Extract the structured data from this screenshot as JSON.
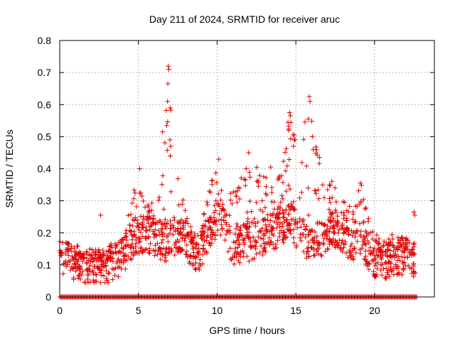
{
  "chart_data": {
    "type": "scatter",
    "title": "Day 211 of 2024, SRMTID for receiver aruc",
    "xlabel": "GPS time / hours",
    "ylabel": "SRMTID / TECUs",
    "xlim": [
      0,
      23.8
    ],
    "ylim": [
      0,
      0.8
    ],
    "x_ticks": [
      0,
      5,
      10,
      15,
      20
    ],
    "x_tick_labels": [
      "0",
      "5",
      "10",
      "15",
      "20"
    ],
    "y_ticks": [
      0,
      0.1,
      0.2,
      0.3,
      0.4,
      0.5,
      0.6,
      0.7,
      0.8
    ],
    "y_tick_labels": [
      "0",
      "0.1",
      "0.2",
      "0.3",
      "0.4",
      "0.5",
      "0.6",
      "0.7",
      "0.8"
    ],
    "grid": true,
    "marker": "+",
    "color": "#e00000",
    "series": [
      {
        "name": "SRMTID",
        "profile_hours": [
          0,
          0.3,
          1,
          2,
          3,
          4,
          4.8,
          5.5,
          6.2,
          6.8,
          7.3,
          8,
          8.7,
          9.5,
          10,
          10.5,
          11,
          12,
          13,
          14,
          14.7,
          15.2,
          15.9,
          16.5,
          17.3,
          18,
          18.5,
          19.2,
          19.8,
          20.5,
          21,
          21.5,
          22,
          22.6
        ],
        "profile_typical": [
          0.12,
          0.13,
          0.11,
          0.1,
          0.1,
          0.13,
          0.19,
          0.2,
          0.18,
          0.17,
          0.19,
          0.18,
          0.13,
          0.2,
          0.25,
          0.22,
          0.16,
          0.17,
          0.19,
          0.22,
          0.24,
          0.2,
          0.17,
          0.18,
          0.22,
          0.2,
          0.17,
          0.19,
          0.12,
          0.12,
          0.11,
          0.13,
          0.12,
          0.12
        ],
        "profile_max": [
          0.17,
          0.16,
          0.15,
          0.14,
          0.14,
          0.22,
          0.37,
          0.33,
          0.27,
          0.72,
          0.49,
          0.29,
          0.19,
          0.36,
          0.43,
          0.3,
          0.35,
          0.45,
          0.38,
          0.4,
          0.57,
          0.48,
          0.62,
          0.42,
          0.36,
          0.35,
          0.27,
          0.36,
          0.24,
          0.19,
          0.2,
          0.23,
          0.2,
          0.27
        ],
        "outliers": [
          [
            6.9,
            0.72
          ],
          [
            6.93,
            0.71
          ],
          [
            6.87,
            0.665
          ],
          [
            6.85,
            0.61
          ],
          [
            6.8,
            0.535
          ],
          [
            7.0,
            0.49
          ],
          [
            7.05,
            0.47
          ],
          [
            7.02,
            0.44
          ],
          [
            15.85,
            0.625
          ],
          [
            15.9,
            0.61
          ],
          [
            15.8,
            0.555
          ],
          [
            14.6,
            0.575
          ],
          [
            14.65,
            0.565
          ],
          [
            14.5,
            0.545
          ],
          [
            14.55,
            0.52
          ],
          [
            14.9,
            0.505
          ],
          [
            14.95,
            0.49
          ],
          [
            14.85,
            0.47
          ],
          [
            12.0,
            0.45
          ],
          [
            16.05,
            0.5
          ],
          [
            16.1,
            0.46
          ],
          [
            5.08,
            0.4
          ],
          [
            10.1,
            0.43
          ],
          [
            16.5,
            0.435
          ],
          [
            13.4,
            0.405
          ],
          [
            11.8,
            0.365
          ],
          [
            19.1,
            0.355
          ],
          [
            9.5,
            0.33
          ],
          [
            2.6,
            0.255
          ],
          [
            22.5,
            0.265
          ],
          [
            22.55,
            0.255
          ]
        ],
        "zero_hours": [
          0,
          22.7
        ]
      }
    ]
  }
}
